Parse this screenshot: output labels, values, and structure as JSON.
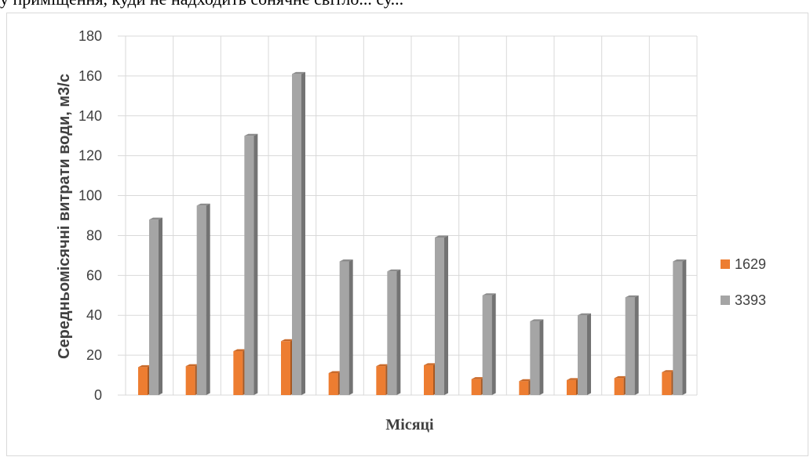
{
  "page": {
    "top_text": "у приміщення, куди не надходить сонячне світло... су..."
  },
  "colors": {
    "series_1629": "#ED7D31",
    "series_3393": "#A5A5A5",
    "grid": "#d9d9d9"
  },
  "chart_data": {
    "type": "bar",
    "title": "",
    "xlabel": "Місяці",
    "ylabel": "Середньомісячні витрати води, м3/с",
    "ylim": [
      0,
      180
    ],
    "yticks": [
      0,
      20,
      40,
      60,
      80,
      100,
      120,
      140,
      160,
      180
    ],
    "categories": [
      "",
      "",
      "",
      "",
      "",
      "",
      "",
      "",
      "",
      "",
      "",
      ""
    ],
    "series": [
      {
        "name": "1629",
        "color": "#ED7D31",
        "values": [
          14,
          14.5,
          22,
          27,
          11,
          14.5,
          15,
          8,
          7,
          7.5,
          8.5,
          11.5
        ]
      },
      {
        "name": "3393",
        "color": "#A5A5A5",
        "values": [
          88,
          95,
          130,
          161,
          67,
          62,
          79,
          50,
          37,
          40,
          49,
          67
        ]
      }
    ],
    "grid": true,
    "legend": "right"
  }
}
